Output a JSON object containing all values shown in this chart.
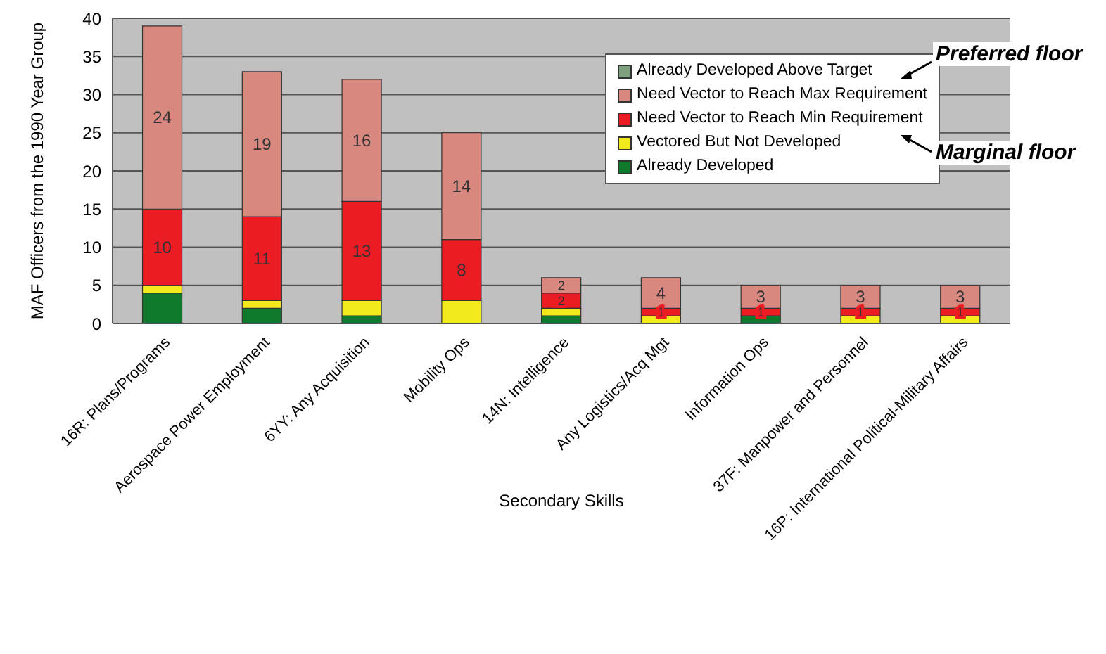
{
  "chart_data": {
    "type": "bar",
    "stacked": true,
    "xlabel": "Secondary Skills",
    "ylabel": "MAF Officers from the 1990 Year Group",
    "categories": [
      "16R: Plans/Programs",
      "Aerospace Power Employment",
      "6YY: Any Acquisition",
      "Mobility Ops",
      "14N: Intelligence",
      "Any Logistics/Acq Mgt",
      "Information Ops",
      "37F: Manpower and Personnel",
      "16P: International Political-Military Affairs"
    ],
    "series": [
      {
        "name": "Already Developed",
        "color": "#0f7a2e",
        "values": [
          4,
          2,
          1,
          0,
          1,
          0,
          1,
          0,
          0
        ]
      },
      {
        "name": "Vectored But Not Developed",
        "color": "#f2ea1c",
        "values": [
          1,
          1,
          2,
          3,
          1,
          1,
          0,
          1,
          1
        ]
      },
      {
        "name": "Need Vector to Reach Min Requirement",
        "color": "#ec1c24",
        "values": [
          10,
          11,
          13,
          8,
          2,
          1,
          1,
          1,
          1
        ],
        "value_labels": [
          "10",
          "11",
          "13",
          "8",
          "2",
          "1",
          "1",
          "1",
          "1"
        ]
      },
      {
        "name": "Need Vector to Reach Max Requirement",
        "color": "#d98880",
        "values": [
          24,
          19,
          16,
          14,
          2,
          4,
          3,
          3,
          3
        ],
        "value_labels": [
          "24",
          "19",
          "16",
          "14",
          "2",
          "4",
          "3",
          "3",
          "3"
        ]
      },
      {
        "name": "Already Developed Above Target",
        "color": "#7fa07f",
        "values": [
          0,
          0,
          0,
          0,
          0,
          0,
          0,
          0,
          0
        ]
      }
    ],
    "ylim": [
      0,
      40
    ],
    "yticks": [
      0,
      5,
      10,
      15,
      20,
      25,
      30,
      35,
      40
    ],
    "grid": "y",
    "legend": "top right",
    "annotations": [
      "Preferred floor",
      "Marginal floor"
    ]
  }
}
